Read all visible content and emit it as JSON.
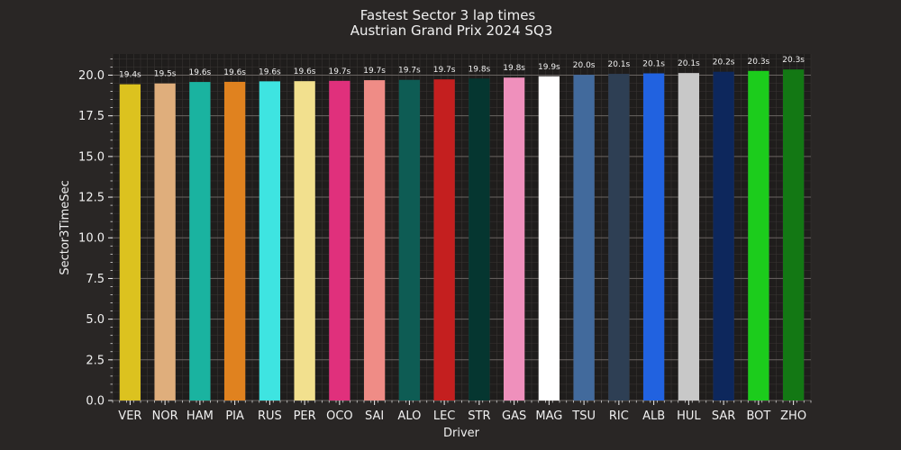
{
  "chart_data": {
    "type": "bar",
    "title": "Fastest Sector 3 lap times",
    "subtitle": "Austrian Grand Prix 2024 SQ3",
    "xlabel": "Driver",
    "ylabel": "Sector3TimeSec",
    "ylim": [
      0,
      21.3
    ],
    "yticks": [
      "0.0",
      "2.5",
      "5.0",
      "7.5",
      "10.0",
      "12.5",
      "15.0",
      "17.5",
      "20.0"
    ],
    "grid": true,
    "categories": [
      "VER",
      "NOR",
      "HAM",
      "PIA",
      "RUS",
      "PER",
      "OCO",
      "SAI",
      "ALO",
      "LEC",
      "STR",
      "GAS",
      "MAG",
      "TSU",
      "RIC",
      "ALB",
      "HUL",
      "SAR",
      "BOT",
      "ZHO"
    ],
    "values": [
      19.44,
      19.49,
      19.58,
      19.59,
      19.62,
      19.63,
      19.65,
      19.69,
      19.71,
      19.74,
      19.79,
      19.85,
      19.93,
      20.02,
      20.08,
      20.11,
      20.13,
      20.21,
      20.26,
      20.35
    ],
    "data_labels": [
      "19.4s",
      "19.5s",
      "19.6s",
      "19.6s",
      "19.6s",
      "19.6s",
      "19.7s",
      "19.7s",
      "19.7s",
      "19.7s",
      "19.8s",
      "19.8s",
      "19.9s",
      "20.0s",
      "20.1s",
      "20.1s",
      "20.1s",
      "20.2s",
      "20.3s",
      "20.3s"
    ],
    "colors": [
      "#dcc21f",
      "#dfae7c",
      "#1ab3a0",
      "#e0821f",
      "#3ee4e1",
      "#f2e08e",
      "#e0307c",
      "#ef8c86",
      "#0e5c54",
      "#c41f1f",
      "#053630",
      "#ef90bc",
      "#ffffff",
      "#426a9c",
      "#2e3f54",
      "#2162e0",
      "#c8c8c8",
      "#0d275c",
      "#1ccc1c",
      "#137814"
    ]
  }
}
